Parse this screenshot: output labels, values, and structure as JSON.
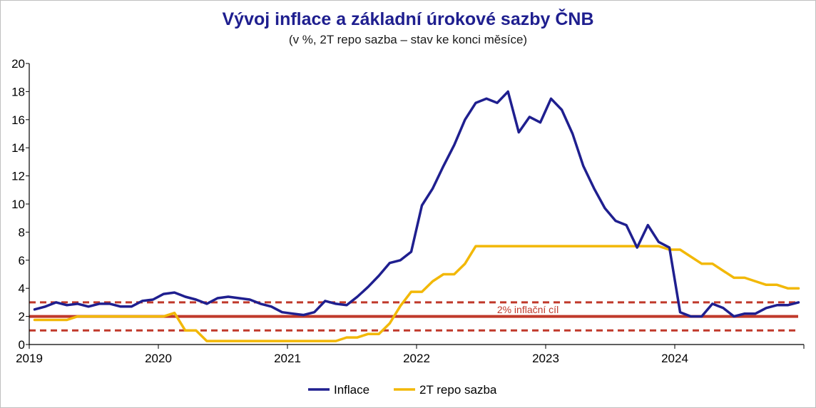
{
  "chart_data": {
    "type": "line",
    "title": "Vývoj inflace a základní úrokové sazby ČNB",
    "subtitle": "(v %, 2T repo sazba – stav ke konci měsíce)",
    "x_start": "2019-01",
    "x_end": "2024-12",
    "x_tick_labels": [
      "2019",
      "2020",
      "2021",
      "2022",
      "2023",
      "2024"
    ],
    "y_tick_labels": [
      "0",
      "2",
      "4",
      "6",
      "8",
      "10",
      "12",
      "14",
      "16",
      "18",
      "20"
    ],
    "ylim": [
      0,
      20
    ],
    "grid": false,
    "legend_position": "bottom",
    "target": {
      "label": "2% inflační cíl",
      "value": 2,
      "band": [
        1,
        3
      ],
      "color": "#c0392b"
    },
    "series": [
      {
        "name": "Inflace",
        "color": "#1f1f8f",
        "values": [
          2.5,
          2.7,
          3.0,
          2.8,
          2.9,
          2.7,
          2.9,
          2.9,
          2.7,
          2.7,
          3.1,
          3.2,
          3.6,
          3.7,
          3.4,
          3.2,
          2.9,
          3.3,
          3.4,
          3.3,
          3.2,
          2.9,
          2.7,
          2.3,
          2.2,
          2.1,
          2.3,
          3.1,
          2.9,
          2.8,
          3.4,
          4.1,
          4.9,
          5.8,
          6.0,
          6.6,
          9.9,
          11.1,
          12.7,
          14.2,
          16.0,
          17.2,
          17.5,
          17.2,
          18.0,
          15.1,
          16.2,
          15.8,
          17.5,
          16.7,
          15.0,
          12.7,
          11.1,
          9.7,
          8.8,
          8.5,
          6.9,
          8.5,
          7.3,
          6.9,
          2.3,
          2.0,
          2.0,
          2.9,
          2.6,
          2.0,
          2.2,
          2.2,
          2.6,
          2.8,
          2.8,
          3.0
        ]
      },
      {
        "name": "2T repo sazba",
        "color": "#f2b807",
        "values": [
          1.75,
          1.75,
          1.75,
          1.75,
          2.0,
          2.0,
          2.0,
          2.0,
          2.0,
          2.0,
          2.0,
          2.0,
          2.0,
          2.25,
          1.0,
          1.0,
          0.25,
          0.25,
          0.25,
          0.25,
          0.25,
          0.25,
          0.25,
          0.25,
          0.25,
          0.25,
          0.25,
          0.25,
          0.25,
          0.5,
          0.5,
          0.75,
          0.75,
          1.5,
          2.75,
          3.75,
          3.75,
          4.5,
          5.0,
          5.0,
          5.75,
          7.0,
          7.0,
          7.0,
          7.0,
          7.0,
          7.0,
          7.0,
          7.0,
          7.0,
          7.0,
          7.0,
          7.0,
          7.0,
          7.0,
          7.0,
          7.0,
          7.0,
          7.0,
          6.75,
          6.75,
          6.25,
          5.75,
          5.75,
          5.25,
          4.75,
          4.75,
          4.5,
          4.25,
          4.25,
          4.0,
          4.0
        ]
      }
    ]
  }
}
